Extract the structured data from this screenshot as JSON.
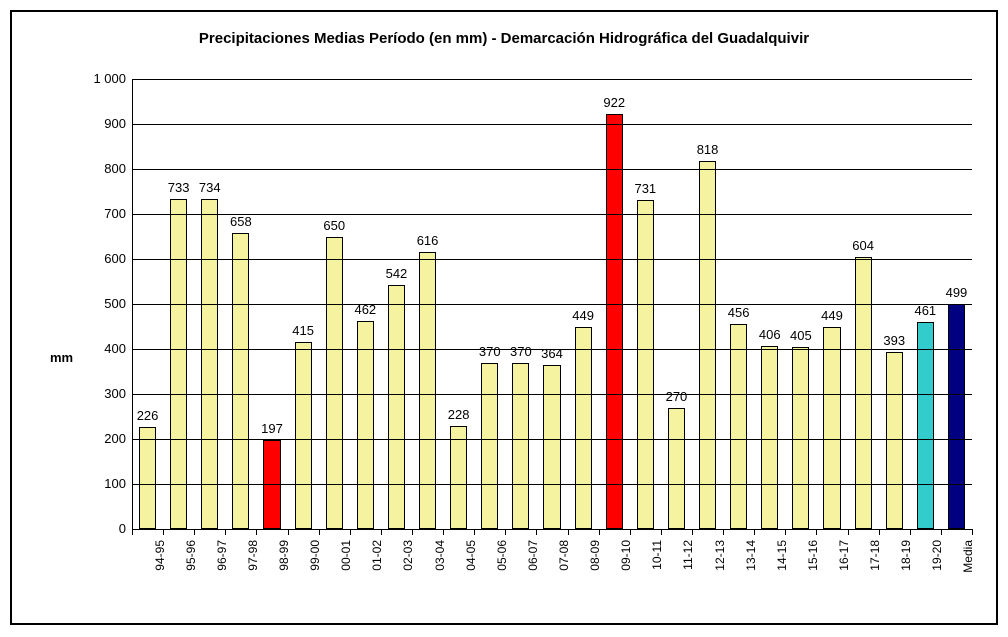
{
  "chart": {
    "type": "bar",
    "title": "Precipitaciones Medias Período (en mm) - Demarcación Hidrográfica del Guadalquivir",
    "y_axis_label": "mm",
    "ylim": [
      0,
      1000
    ],
    "ytick_step": 100,
    "y_ticks": [
      0,
      100,
      200,
      300,
      400,
      500,
      600,
      700,
      800,
      900,
      1000
    ],
    "y_tick_labels": [
      "0",
      "100",
      "200",
      "300",
      "400",
      "500",
      "600",
      "700",
      "800",
      "900",
      "1 000"
    ],
    "background_color": "#ffffff",
    "grid_color": "#000000",
    "border_color": "#000000",
    "bar_border_color": "#000000",
    "title_fontsize": 15,
    "label_fontsize": 13,
    "categories": [
      "94-95",
      "95-96",
      "96-97",
      "97-98",
      "98-99",
      "99-00",
      "00-01",
      "01-02",
      "02-03",
      "03-04",
      "04-05",
      "05-06",
      "06-07",
      "07-08",
      "08-09",
      "09-10",
      "10-11",
      "11-12",
      "12-13",
      "13-14",
      "14-15",
      "15-16",
      "16-17",
      "17-18",
      "18-19",
      "19-20",
      "Media"
    ],
    "values": [
      226,
      733,
      734,
      658,
      197,
      415,
      650,
      462,
      542,
      616,
      228,
      370,
      370,
      364,
      449,
      922,
      731,
      270,
      818,
      456,
      406,
      405,
      449,
      604,
      393,
      461,
      499
    ],
    "bar_colors": [
      "#f5f39f",
      "#f5f39f",
      "#f5f39f",
      "#f5f39f",
      "#ff0000",
      "#f5f39f",
      "#f5f39f",
      "#f5f39f",
      "#f5f39f",
      "#f5f39f",
      "#f5f39f",
      "#f5f39f",
      "#f5f39f",
      "#f5f39f",
      "#f5f39f",
      "#ff0000",
      "#f5f39f",
      "#f5f39f",
      "#f5f39f",
      "#f5f39f",
      "#f5f39f",
      "#f5f39f",
      "#f5f39f",
      "#f5f39f",
      "#f5f39f",
      "#33cccc",
      "#000080"
    ],
    "bar_width_ratio": 0.55
  }
}
